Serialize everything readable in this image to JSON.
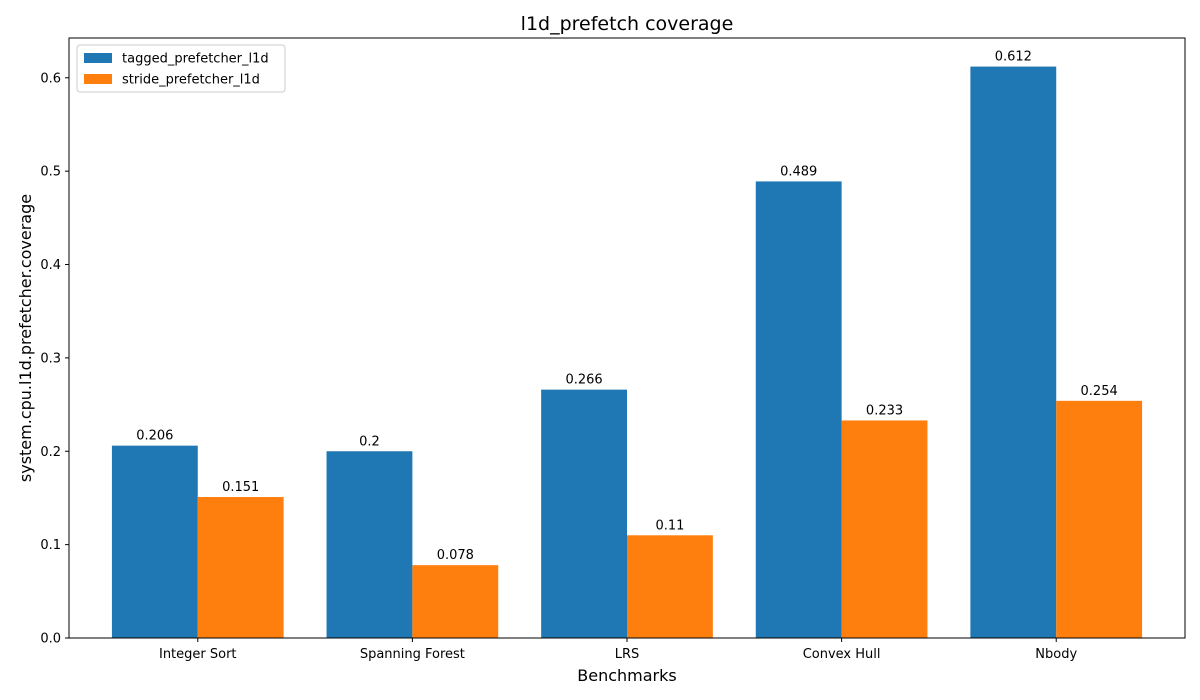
{
  "chart_data": {
    "type": "bar",
    "title": "l1d_prefetch coverage",
    "xlabel": "Benchmarks",
    "ylabel": "system.cpu.l1d.prefetcher.coverage",
    "categories": [
      "Integer Sort",
      "Spanning Forest",
      "LRS",
      "Convex Hull",
      "Nbody"
    ],
    "series": [
      {
        "name": "tagged_prefetcher_l1d",
        "values": [
          0.206,
          0.2,
          0.266,
          0.489,
          0.612
        ],
        "labels": [
          "0.206",
          "0.2",
          "0.266",
          "0.489",
          "0.612"
        ],
        "color": "#1f77b4"
      },
      {
        "name": "stride_prefetcher_l1d",
        "values": [
          0.151,
          0.078,
          0.11,
          0.233,
          0.254
        ],
        "labels": [
          "0.151",
          "0.078",
          "0.11",
          "0.233",
          "0.254"
        ],
        "color": "#ff7f0e"
      }
    ],
    "ylim": [
      0,
      0.6426
    ],
    "yticks": [
      "0.0",
      "0.1",
      "0.2",
      "0.3",
      "0.4",
      "0.5",
      "0.6"
    ],
    "grid": false,
    "legend_position": "top-left"
  }
}
